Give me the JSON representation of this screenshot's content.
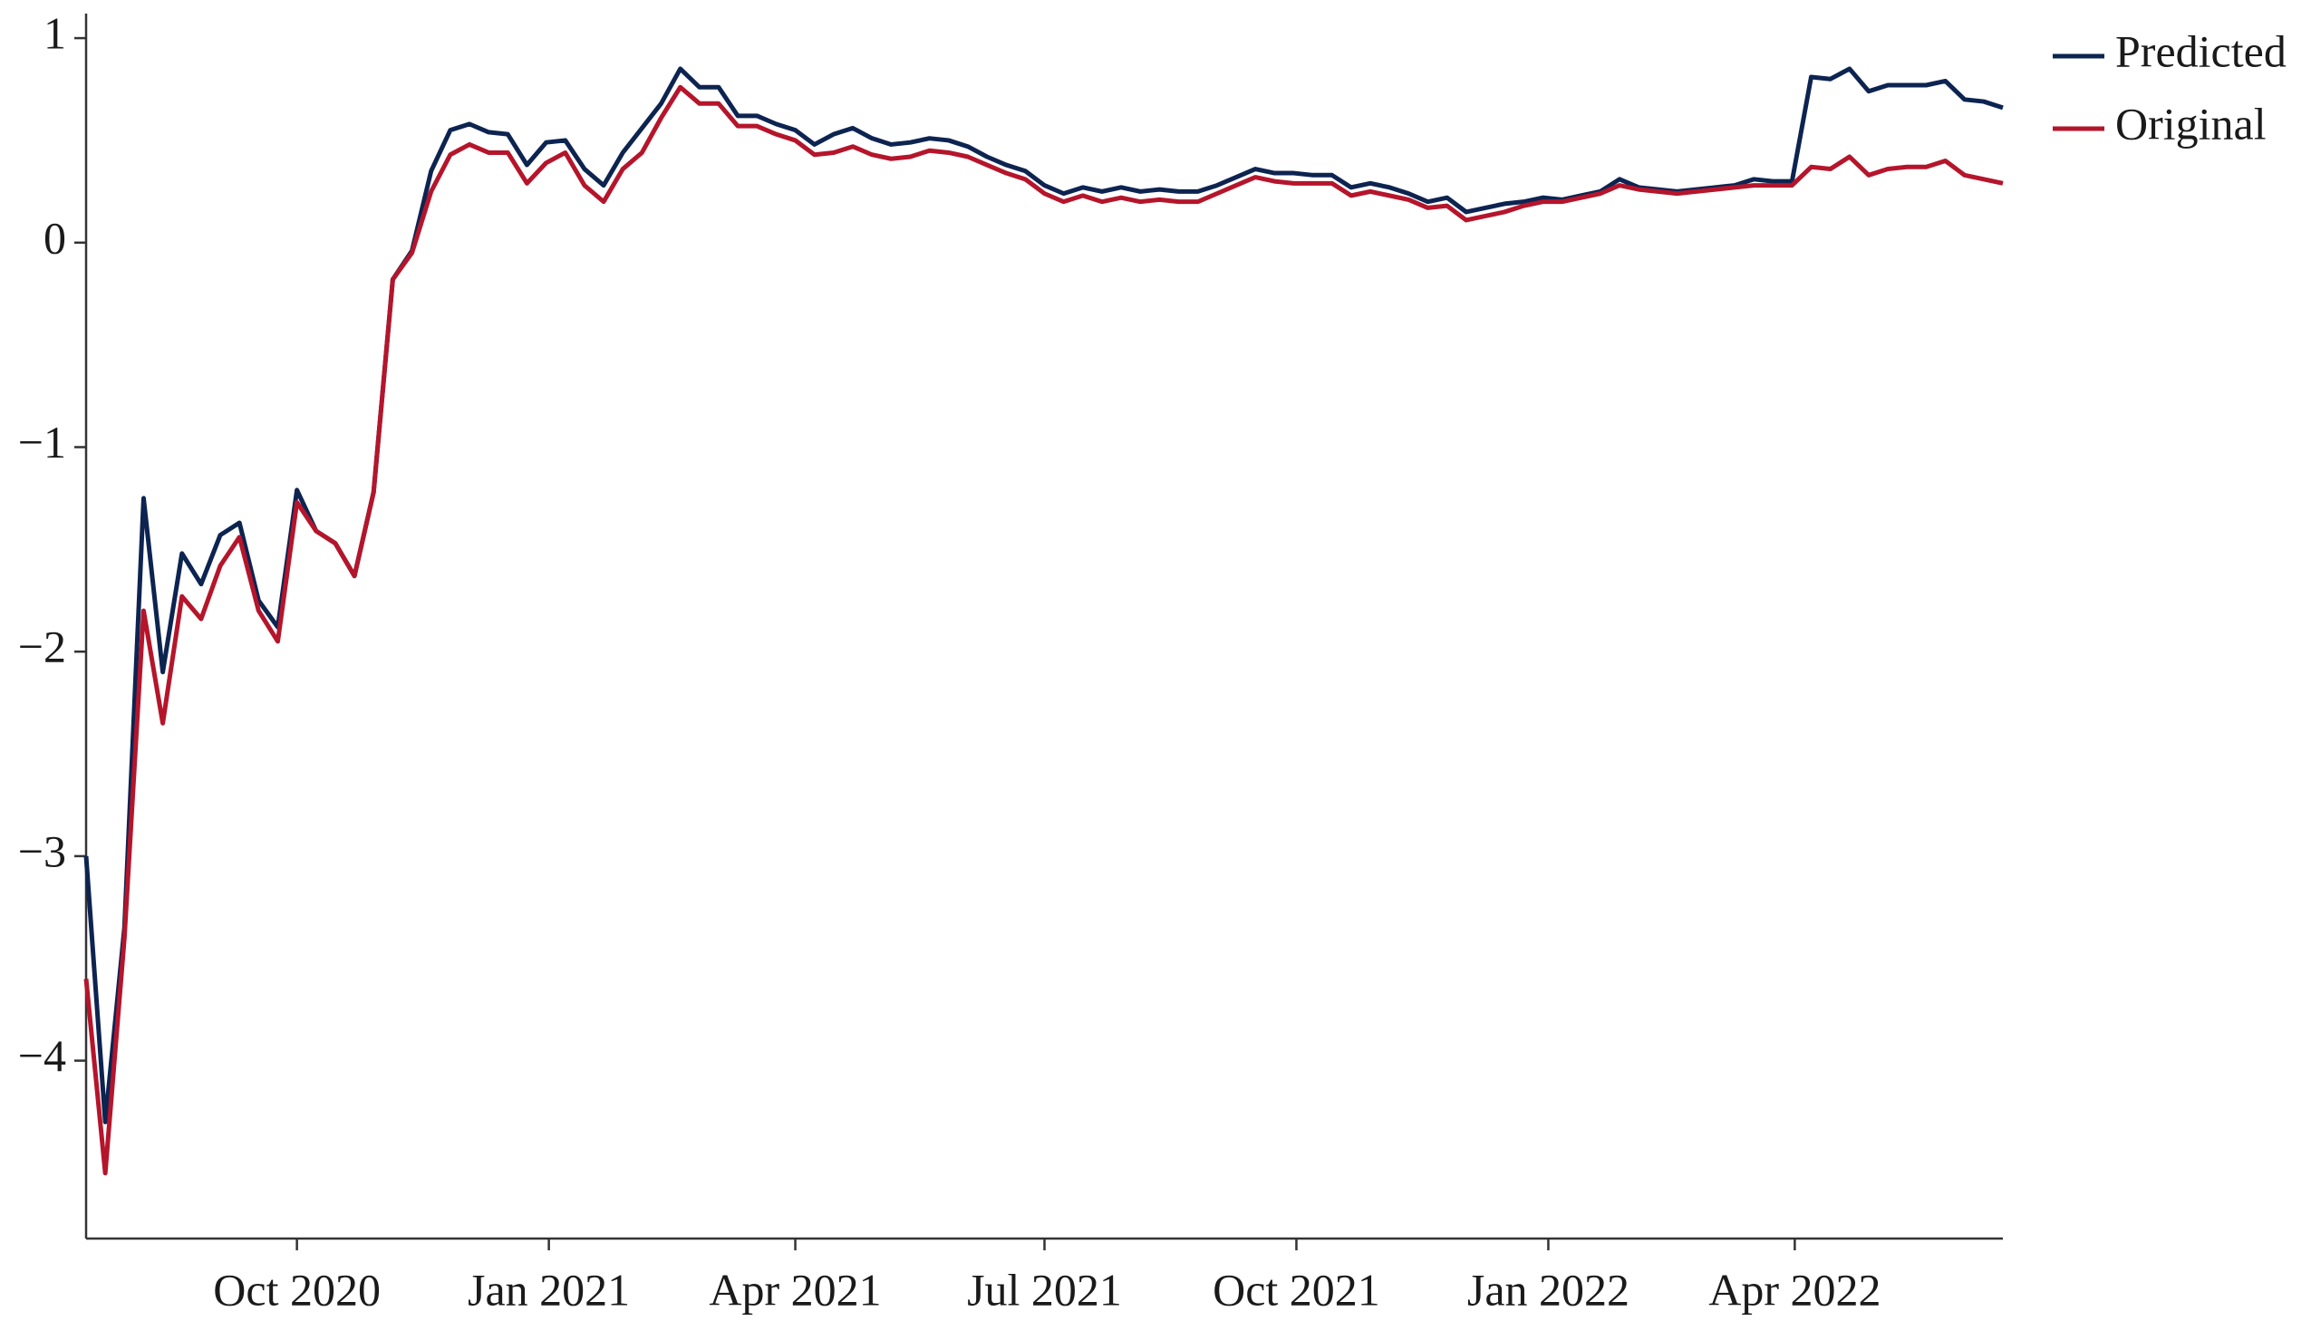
{
  "chart_data": {
    "type": "line",
    "xlim": [
      "2020-07-16",
      "2022-06-16"
    ],
    "xticks": [
      {
        "value": "2020-10-01",
        "label": "Oct 2020"
      },
      {
        "value": "2021-01-01",
        "label": "Jan 2021"
      },
      {
        "value": "2021-04-01",
        "label": "Apr 2021"
      },
      {
        "value": "2021-07-01",
        "label": "Jul 2021"
      },
      {
        "value": "2021-10-01",
        "label": "Oct 2021"
      },
      {
        "value": "2022-01-01",
        "label": "Jan 2022"
      },
      {
        "value": "2022-04-01",
        "label": "Apr 2022"
      }
    ],
    "ylim": [
      -4.87,
      1.12
    ],
    "yticks": [
      {
        "value": -4,
        "label": "−4"
      },
      {
        "value": -3,
        "label": "−3"
      },
      {
        "value": -2,
        "label": "−2"
      },
      {
        "value": -1,
        "label": "−1"
      },
      0,
      1
    ],
    "grid": false,
    "legend": "upper right",
    "series": [
      {
        "name": "Predicted",
        "color": "#0d2451",
        "values": [
          -3.0,
          -4.3,
          -3.35,
          -1.25,
          -2.1,
          -1.52,
          -1.67,
          -1.43,
          -1.37,
          -1.75,
          -1.88,
          -1.21,
          -1.41,
          -1.47,
          -1.63,
          -1.22,
          -0.18,
          -0.04,
          0.35,
          0.55,
          0.58,
          0.54,
          0.53,
          0.38,
          0.49,
          0.5,
          0.36,
          0.28,
          0.44,
          0.56,
          0.68,
          0.85,
          0.76,
          0.76,
          0.62,
          0.62,
          0.58,
          0.55,
          0.48,
          0.53,
          0.56,
          0.51,
          0.48,
          0.49,
          0.51,
          0.5,
          0.47,
          0.42,
          0.38,
          0.35,
          0.28,
          0.24,
          0.27,
          0.25,
          0.27,
          0.25,
          0.26,
          0.25,
          0.25,
          0.28,
          0.32,
          0.36,
          0.34,
          0.34,
          0.33,
          0.33,
          0.27,
          0.29,
          0.27,
          0.24,
          0.2,
          0.22,
          0.15,
          0.17,
          0.19,
          0.2,
          0.22,
          0.21,
          0.23,
          0.25,
          0.31,
          0.27,
          0.26,
          0.25,
          0.26,
          0.27,
          0.28,
          0.31,
          0.3,
          0.3,
          0.81,
          0.8,
          0.85,
          0.74,
          0.77,
          0.77,
          0.77,
          0.79,
          0.7,
          0.69,
          0.66
        ]
      },
      {
        "name": "Original",
        "color": "#b5152b",
        "values": [
          -3.6,
          -4.55,
          -3.4,
          -1.8,
          -2.35,
          -1.73,
          -1.84,
          -1.58,
          -1.44,
          -1.8,
          -1.95,
          -1.27,
          -1.41,
          -1.47,
          -1.63,
          -1.22,
          -0.18,
          -0.05,
          0.25,
          0.43,
          0.48,
          0.44,
          0.44,
          0.29,
          0.39,
          0.44,
          0.28,
          0.2,
          0.36,
          0.44,
          0.61,
          0.76,
          0.68,
          0.68,
          0.57,
          0.57,
          0.53,
          0.5,
          0.43,
          0.44,
          0.47,
          0.43,
          0.41,
          0.42,
          0.45,
          0.44,
          0.42,
          0.38,
          0.34,
          0.31,
          0.24,
          0.2,
          0.23,
          0.2,
          0.22,
          0.2,
          0.21,
          0.2,
          0.2,
          0.24,
          0.28,
          0.32,
          0.3,
          0.29,
          0.29,
          0.29,
          0.23,
          0.25,
          0.23,
          0.21,
          0.17,
          0.18,
          0.11,
          0.13,
          0.15,
          0.18,
          0.2,
          0.2,
          0.22,
          0.24,
          0.28,
          0.26,
          0.25,
          0.24,
          0.25,
          0.26,
          0.27,
          0.28,
          0.28,
          0.28,
          0.37,
          0.36,
          0.42,
          0.33,
          0.36,
          0.37,
          0.37,
          0.4,
          0.33,
          0.31,
          0.29
        ]
      }
    ]
  }
}
